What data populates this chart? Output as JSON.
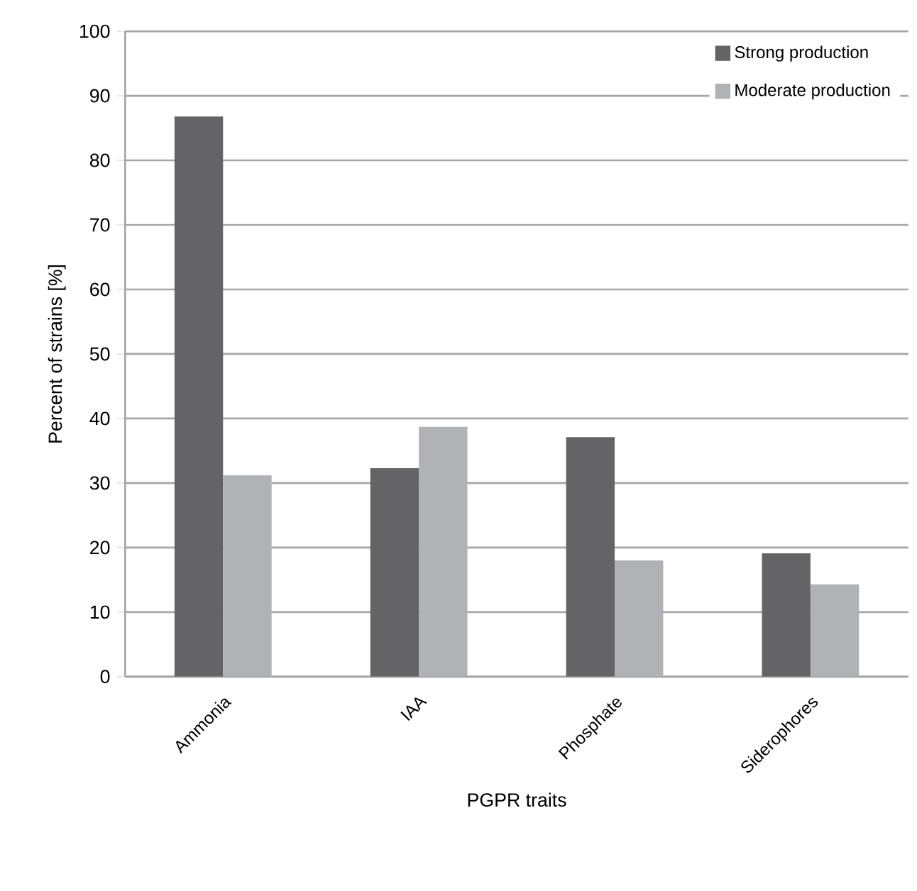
{
  "chart_data": {
    "type": "bar",
    "xlabel": "PGPR traits",
    "ylabel": "Percent of strains [%]",
    "categories": [
      "Ammonia",
      "IAA",
      "Phosphate",
      "Siderophores"
    ],
    "series": [
      {
        "name": "Strong production",
        "color": "#646466",
        "values": [
          86.8,
          32.3,
          37.1,
          19.1
        ]
      },
      {
        "name": "Moderate production",
        "color": "#b1b2b5",
        "values": [
          31.2,
          38.7,
          18.0,
          14.3
        ]
      }
    ],
    "ylim": [
      0,
      100
    ],
    "yticks": [
      0,
      10,
      20,
      30,
      40,
      50,
      60,
      70,
      80,
      90,
      100
    ],
    "grid": "y",
    "legend": "top right"
  }
}
